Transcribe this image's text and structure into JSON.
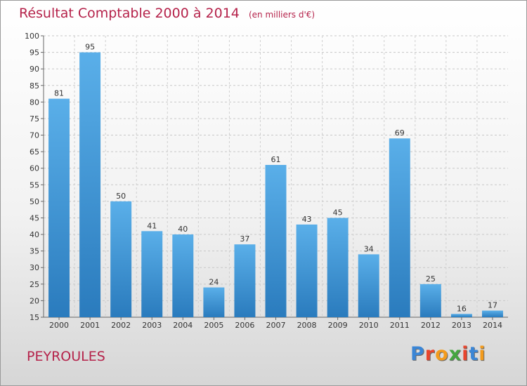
{
  "title": "Résultat Comptable 2000 à 2014",
  "subtitle": "(en milliers d'€)",
  "commune": "PEYROULES",
  "logo_text": "Proxiti",
  "colors": {
    "title": "#b5224a",
    "bar_light": "#5aafe9",
    "bar_dark": "#2a7bbd"
  },
  "chart_data": {
    "type": "bar",
    "title": "Résultat Comptable 2000 à 2014",
    "subtitle": "(en milliers d'€)",
    "categories": [
      "2000",
      "2001",
      "2002",
      "2003",
      "2004",
      "2005",
      "2006",
      "2007",
      "2008",
      "2009",
      "2010",
      "2011",
      "2012",
      "2013",
      "2014"
    ],
    "values": [
      81,
      95,
      50,
      41,
      40,
      24,
      37,
      61,
      43,
      45,
      34,
      69,
      25,
      16,
      17
    ],
    "ylim": [
      15,
      100
    ],
    "yticks": [
      15,
      20,
      25,
      30,
      35,
      40,
      45,
      50,
      55,
      60,
      65,
      70,
      75,
      80,
      85,
      90,
      95,
      100
    ],
    "xlabel": "",
    "ylabel": "",
    "grid": true
  }
}
